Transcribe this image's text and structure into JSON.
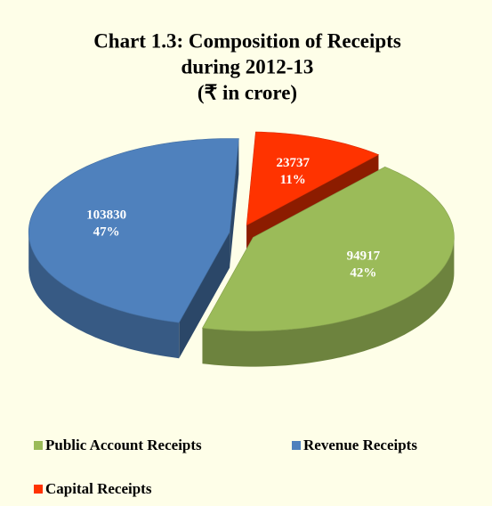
{
  "chart_data": {
    "type": "pie",
    "title": [
      "Chart 1.3: Composition of Receipts",
      "during 2012-13",
      "(₹ in crore)"
    ],
    "categories": [
      "Public Account Receipts",
      "Revenue Receipts",
      "Capital Receipts"
    ],
    "values": [
      94917,
      103830,
      23737
    ],
    "percent_labels": [
      "42%",
      "47%",
      "11%"
    ],
    "colors": [
      "#9BBB59",
      "#4F81BD",
      "#FF3300"
    ],
    "legend": "bottom"
  }
}
